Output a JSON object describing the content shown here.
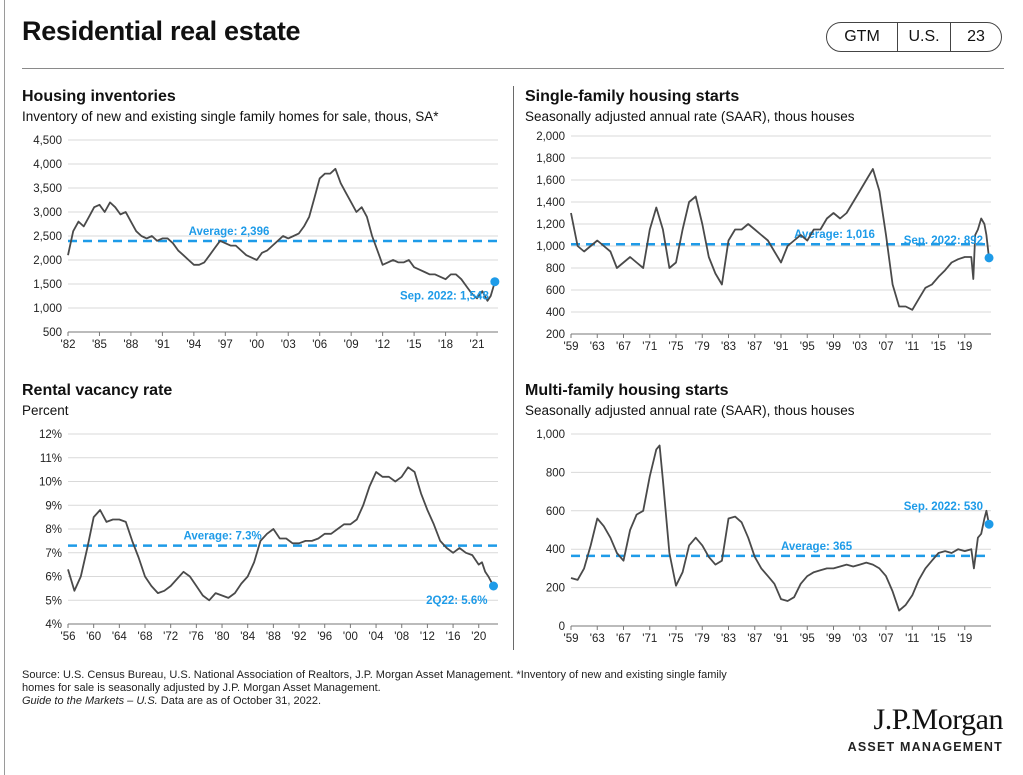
{
  "header": {
    "title": "Residential real estate",
    "badge": [
      "GTM",
      "U.S.",
      "23"
    ]
  },
  "accent_color": "#1e9be8",
  "line_color": "#4a4a4a",
  "chart_data": [
    {
      "type": "line",
      "title": "Housing inventories",
      "subtitle": "Inventory of new and existing single family homes for sale, thous, SA*",
      "xlim": [
        1982,
        2023
      ],
      "ylim": [
        500,
        4500
      ],
      "y_ticks": [
        500,
        1000,
        1500,
        2000,
        2500,
        3000,
        3500,
        4000,
        4500
      ],
      "y_tick_labels": [
        "500",
        "1,000",
        "1,500",
        "2,000",
        "2,500",
        "3,000",
        "3,500",
        "4,000",
        "4,500"
      ],
      "x_ticks": [
        1982,
        1985,
        1988,
        1991,
        1994,
        1997,
        2000,
        2003,
        2006,
        2009,
        2012,
        2015,
        2018,
        2021
      ],
      "x_tick_labels": [
        "'82",
        "'85",
        "'88",
        "'91",
        "'94",
        "'97",
        "'00",
        "'03",
        "'06",
        "'09",
        "'12",
        "'15",
        "'18",
        "'21"
      ],
      "average": {
        "value": 2396,
        "label": "Average: 2,396",
        "label_x": 1993.5
      },
      "latest": {
        "x": 2022.7,
        "y": 1548,
        "label": "Sep. 2022: 1,548"
      },
      "series": [
        {
          "x": [
            1982.0,
            1982.5,
            1983.0,
            1983.5,
            1984.0,
            1984.5,
            1985.0,
            1985.5,
            1986.0,
            1986.5,
            1987.0,
            1987.5,
            1988.0,
            1988.5,
            1989.0,
            1989.5,
            1990.0,
            1990.5,
            1991.0,
            1991.5,
            1992.0,
            1992.5,
            1993.0,
            1993.5,
            1994.0,
            1994.5,
            1995.0,
            1995.5,
            1996.0,
            1996.5,
            1997.0,
            1997.5,
            1998.0,
            1998.5,
            1999.0,
            1999.5,
            2000.0,
            2000.5,
            2001.0,
            2001.5,
            2002.0,
            2002.5,
            2003.0,
            2003.5,
            2004.0,
            2004.5,
            2005.0,
            2005.5,
            2006.0,
            2006.5,
            2007.0,
            2007.5,
            2008.0,
            2008.5,
            2009.0,
            2009.5,
            2010.0,
            2010.5,
            2011.0,
            2011.5,
            2012.0,
            2012.5,
            2013.0,
            2013.5,
            2014.0,
            2014.5,
            2015.0,
            2015.5,
            2016.0,
            2016.5,
            2017.0,
            2017.5,
            2018.0,
            2018.5,
            2019.0,
            2019.5,
            2020.0,
            2020.5,
            2021.0,
            2021.5,
            2022.0,
            2022.3,
            2022.7
          ],
          "y": [
            2100,
            2600,
            2800,
            2700,
            2900,
            3100,
            3150,
            3000,
            3200,
            3100,
            2950,
            3000,
            2800,
            2600,
            2500,
            2450,
            2500,
            2400,
            2450,
            2450,
            2350,
            2200,
            2100,
            2000,
            1900,
            1900,
            1950,
            2100,
            2250,
            2400,
            2350,
            2300,
            2300,
            2200,
            2100,
            2050,
            2000,
            2150,
            2200,
            2300,
            2400,
            2500,
            2450,
            2500,
            2550,
            2700,
            2900,
            3300,
            3700,
            3800,
            3800,
            3900,
            3600,
            3400,
            3200,
            3000,
            3100,
            2900,
            2500,
            2200,
            1900,
            1950,
            2000,
            1950,
            1950,
            2000,
            1850,
            1800,
            1750,
            1700,
            1700,
            1650,
            1600,
            1700,
            1700,
            1600,
            1450,
            1300,
            1200,
            1350,
            1150,
            1250,
            1548
          ]
        }
      ]
    },
    {
      "type": "line",
      "title": "Single-family housing starts",
      "subtitle": "Seasonally adjusted annual rate (SAAR), thous houses",
      "xlim": [
        1959,
        2023
      ],
      "ylim": [
        200,
        2000
      ],
      "y_ticks": [
        200,
        400,
        600,
        800,
        1000,
        1200,
        1400,
        1600,
        1800,
        2000
      ],
      "y_tick_labels": [
        "200",
        "400",
        "600",
        "800",
        "1,000",
        "1,200",
        "1,400",
        "1,600",
        "1,800",
        "2,000"
      ],
      "x_ticks": [
        1959,
        1963,
        1967,
        1971,
        1975,
        1979,
        1983,
        1987,
        1991,
        1995,
        1999,
        2003,
        2007,
        2011,
        2015,
        2019
      ],
      "x_tick_labels": [
        "'59",
        "'63",
        "'67",
        "'71",
        "'75",
        "'79",
        "'83",
        "'87",
        "'91",
        "'95",
        "'99",
        "'03",
        "'07",
        "'11",
        "'15",
        "'19"
      ],
      "average": {
        "value": 1016,
        "label": "Average: 1,016",
        "label_x": 1993
      },
      "latest": {
        "x": 2022.7,
        "y": 892,
        "label": "Sep. 2022: 892"
      },
      "series": [
        {
          "x": [
            1959.0,
            1960.0,
            1961.0,
            1962.0,
            1963.0,
            1964.0,
            1965.0,
            1966.0,
            1967.0,
            1968.0,
            1969.0,
            1970.0,
            1971.0,
            1972.0,
            1973.0,
            1974.0,
            1975.0,
            1976.0,
            1977.0,
            1978.0,
            1979.0,
            1980.0,
            1981.0,
            1982.0,
            1983.0,
            1984.0,
            1985.0,
            1986.0,
            1987.0,
            1988.0,
            1989.0,
            1990.0,
            1991.0,
            1992.0,
            1993.0,
            1994.0,
            1995.0,
            1996.0,
            1997.0,
            1998.0,
            1999.0,
            2000.0,
            2001.0,
            2002.0,
            2003.0,
            2004.0,
            2005.0,
            2006.0,
            2007.0,
            2008.0,
            2009.0,
            2010.0,
            2011.0,
            2012.0,
            2013.0,
            2014.0,
            2015.0,
            2016.0,
            2017.0,
            2018.0,
            2019.0,
            2020.0,
            2020.3,
            2020.6,
            2021.0,
            2021.5,
            2022.0,
            2022.3,
            2022.7
          ],
          "y": [
            1300,
            1000,
            950,
            1000,
            1050,
            1000,
            950,
            800,
            850,
            900,
            850,
            800,
            1150,
            1350,
            1150,
            800,
            850,
            1150,
            1400,
            1450,
            1200,
            900,
            750,
            650,
            1050,
            1150,
            1150,
            1200,
            1150,
            1100,
            1050,
            950,
            850,
            1000,
            1050,
            1100,
            1050,
            1150,
            1150,
            1250,
            1300,
            1250,
            1300,
            1400,
            1500,
            1600,
            1700,
            1500,
            1100,
            650,
            450,
            450,
            420,
            520,
            620,
            650,
            720,
            780,
            850,
            880,
            900,
            900,
            700,
            1100,
            1150,
            1250,
            1200,
            1100,
            892
          ]
        }
      ]
    },
    {
      "type": "line",
      "title": "Rental vacancy rate",
      "subtitle": "Percent",
      "xlim": [
        1956,
        2023
      ],
      "ylim": [
        4,
        12
      ],
      "y_ticks": [
        4,
        5,
        6,
        7,
        8,
        9,
        10,
        11,
        12
      ],
      "y_tick_labels": [
        "4%",
        "5%",
        "6%",
        "7%",
        "8%",
        "9%",
        "10%",
        "11%",
        "12%"
      ],
      "x_ticks": [
        1956,
        1960,
        1964,
        1968,
        1972,
        1976,
        1980,
        1984,
        1988,
        1992,
        1996,
        2000,
        2004,
        2008,
        2012,
        2016,
        2020
      ],
      "x_tick_labels": [
        "'56",
        "'60",
        "'64",
        "'68",
        "'72",
        "'76",
        "'80",
        "'84",
        "'88",
        "'92",
        "'96",
        "'00",
        "'04",
        "'08",
        "'12",
        "'16",
        "'20"
      ],
      "average": {
        "value": 7.3,
        "label": "Average: 7.3%",
        "label_x": 1974
      },
      "latest": {
        "x": 2022.3,
        "y": 5.6,
        "label": "2Q22: 5.6%"
      },
      "series": [
        {
          "x": [
            1956.0,
            1957.0,
            1958.0,
            1959.0,
            1960.0,
            1961.0,
            1962.0,
            1963.0,
            1964.0,
            1965.0,
            1966.0,
            1967.0,
            1968.0,
            1969.0,
            1970.0,
            1971.0,
            1972.0,
            1973.0,
            1974.0,
            1975.0,
            1976.0,
            1977.0,
            1978.0,
            1979.0,
            1980.0,
            1981.0,
            1982.0,
            1983.0,
            1984.0,
            1985.0,
            1986.0,
            1987.0,
            1988.0,
            1989.0,
            1990.0,
            1991.0,
            1992.0,
            1993.0,
            1994.0,
            1995.0,
            1996.0,
            1997.0,
            1998.0,
            1999.0,
            2000.0,
            2001.0,
            2002.0,
            2003.0,
            2004.0,
            2005.0,
            2006.0,
            2007.0,
            2008.0,
            2009.0,
            2010.0,
            2011.0,
            2012.0,
            2013.0,
            2014.0,
            2015.0,
            2016.0,
            2017.0,
            2018.0,
            2019.0,
            2020.0,
            2020.5,
            2021.0,
            2021.5,
            2022.3
          ],
          "y": [
            6.3,
            5.4,
            6.0,
            7.2,
            8.5,
            8.8,
            8.3,
            8.4,
            8.4,
            8.3,
            7.5,
            6.8,
            6.0,
            5.6,
            5.3,
            5.4,
            5.6,
            5.9,
            6.2,
            6.0,
            5.6,
            5.2,
            5.0,
            5.3,
            5.2,
            5.1,
            5.3,
            5.7,
            6.0,
            6.6,
            7.5,
            7.8,
            8.0,
            7.6,
            7.6,
            7.4,
            7.4,
            7.5,
            7.5,
            7.6,
            7.8,
            7.8,
            8.0,
            8.2,
            8.2,
            8.4,
            9.0,
            9.8,
            10.4,
            10.2,
            10.2,
            10.0,
            10.2,
            10.6,
            10.4,
            9.5,
            8.8,
            8.2,
            7.5,
            7.2,
            7.0,
            7.2,
            7.0,
            6.9,
            6.5,
            6.6,
            6.2,
            6.0,
            5.6
          ]
        }
      ]
    },
    {
      "type": "line",
      "title": "Multi-family housing starts",
      "subtitle": "Seasonally adjusted annual rate (SAAR), thous houses",
      "xlim": [
        1959,
        2023
      ],
      "ylim": [
        0,
        1000
      ],
      "y_ticks": [
        0,
        200,
        400,
        600,
        800,
        1000
      ],
      "y_tick_labels": [
        "0",
        "200",
        "400",
        "600",
        "800",
        "1,000"
      ],
      "x_ticks": [
        1959,
        1963,
        1967,
        1971,
        1975,
        1979,
        1983,
        1987,
        1991,
        1995,
        1999,
        2003,
        2007,
        2011,
        2015,
        2019
      ],
      "x_tick_labels": [
        "'59",
        "'63",
        "'67",
        "'71",
        "'75",
        "'79",
        "'83",
        "'87",
        "'91",
        "'95",
        "'99",
        "'03",
        "'07",
        "'11",
        "'15",
        "'19"
      ],
      "average": {
        "value": 365,
        "label": "Average: 365",
        "label_x": 1991
      },
      "latest": {
        "x": 2022.7,
        "y": 530,
        "label": "Sep. 2022: 530"
      },
      "series": [
        {
          "x": [
            1959.0,
            1960.0,
            1961.0,
            1962.0,
            1963.0,
            1964.0,
            1965.0,
            1966.0,
            1967.0,
            1968.0,
            1969.0,
            1970.0,
            1971.0,
            1972.0,
            1972.5,
            1973.0,
            1974.0,
            1975.0,
            1976.0,
            1977.0,
            1978.0,
            1979.0,
            1980.0,
            1981.0,
            1982.0,
            1983.0,
            1984.0,
            1985.0,
            1986.0,
            1987.0,
            1988.0,
            1989.0,
            1990.0,
            1991.0,
            1992.0,
            1993.0,
            1994.0,
            1995.0,
            1996.0,
            1997.0,
            1998.0,
            1999.0,
            2000.0,
            2001.0,
            2002.0,
            2003.0,
            2004.0,
            2005.0,
            2006.0,
            2007.0,
            2008.0,
            2009.0,
            2010.0,
            2011.0,
            2012.0,
            2013.0,
            2014.0,
            2015.0,
            2016.0,
            2017.0,
            2018.0,
            2019.0,
            2020.0,
            2020.4,
            2021.0,
            2021.5,
            2022.0,
            2022.3,
            2022.7
          ],
          "y": [
            250,
            240,
            300,
            420,
            560,
            520,
            460,
            380,
            340,
            500,
            580,
            600,
            780,
            920,
            940,
            760,
            380,
            210,
            280,
            420,
            460,
            420,
            360,
            320,
            340,
            560,
            570,
            540,
            460,
            360,
            300,
            260,
            220,
            140,
            130,
            150,
            220,
            260,
            280,
            290,
            300,
            300,
            310,
            320,
            310,
            320,
            330,
            320,
            300,
            260,
            180,
            80,
            110,
            160,
            240,
            300,
            340,
            380,
            390,
            380,
            400,
            390,
            400,
            300,
            460,
            480,
            560,
            600,
            530
          ]
        }
      ]
    }
  ],
  "footer": {
    "source_line1": "Source: U.S. Census Bureau, U.S. National Association of Realtors, J.P. Morgan Asset Management. *Inventory of new and existing single family",
    "source_line2": "homes for sale is seasonally adjusted by J.P. Morgan Asset Management.",
    "guide_italic": "Guide to the Markets – U.S.",
    "guide_rest": " Data are as of October 31, 2022."
  },
  "logo": {
    "name": "J.P.Morgan",
    "sub": "ASSET MANAGEMENT"
  }
}
